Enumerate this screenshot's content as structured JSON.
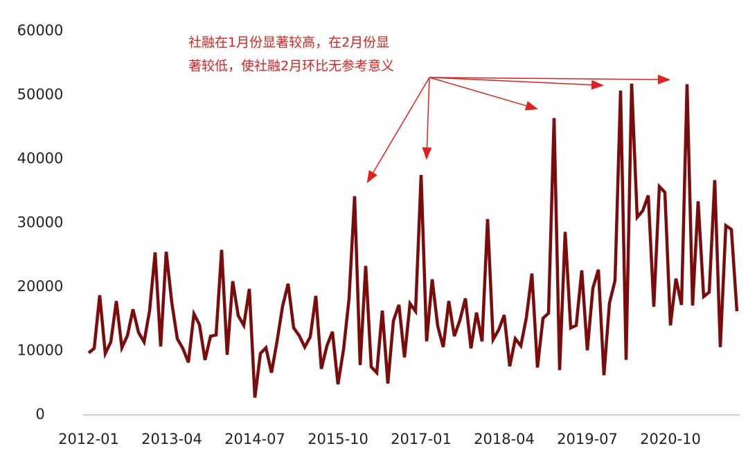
{
  "chart_data": {
    "type": "line",
    "annotation": [
      "社融在1月份显著较高，在2月份显",
      "著较低，使社融2月环比无参考意义"
    ],
    "categories": [
      "2012-01",
      null,
      null,
      null,
      null,
      null,
      null,
      null,
      null,
      null,
      null,
      null,
      null,
      null,
      null,
      "2013-04",
      null,
      null,
      null,
      null,
      null,
      null,
      null,
      null,
      null,
      null,
      null,
      null,
      null,
      null,
      "2014-07",
      null,
      null,
      null,
      null,
      null,
      null,
      null,
      null,
      null,
      null,
      null,
      null,
      null,
      null,
      "2015-10",
      null,
      null,
      null,
      null,
      null,
      null,
      null,
      null,
      null,
      null,
      null,
      null,
      null,
      null,
      "2017-01",
      null,
      null,
      null,
      null,
      null,
      null,
      null,
      null,
      null,
      null,
      null,
      null,
      null,
      null,
      "2018-04",
      null,
      null,
      null,
      null,
      null,
      null,
      null,
      null,
      null,
      null,
      null,
      null,
      null,
      null,
      "2019-07",
      null,
      null,
      null,
      null,
      null,
      null,
      null,
      null,
      null,
      null,
      null,
      null,
      null,
      null,
      "2020-10",
      null,
      null,
      null,
      null,
      null,
      null,
      null,
      null,
      null,
      null,
      null,
      null
    ],
    "series": [
      {
        "color": "#7a0c0c",
        "values": [
          9700,
          10400,
          18700,
          9600,
          11400,
          17800,
          10500,
          12400,
          16500,
          12900,
          11400,
          16300,
          25400,
          10700,
          25500,
          17600,
          11900,
          10400,
          8200,
          15800,
          14100,
          8600,
          12300,
          12500,
          25800,
          9400,
          20900,
          15500,
          14000,
          19700,
          2700,
          9600,
          10500,
          6600,
          11500,
          17000,
          20500,
          13600,
          12400,
          10600,
          12200,
          18600,
          7200,
          10800,
          13000,
          4800,
          10200,
          18200,
          34200,
          7800,
          23300,
          7500,
          6600,
          16300,
          4900,
          14700,
          17200,
          9000,
          17400,
          16200,
          37500,
          11500,
          21200,
          13900,
          10600,
          17800,
          12300,
          14800,
          18200,
          10400,
          16000,
          11500,
          30600,
          11800,
          13300,
          15600,
          7600,
          11900,
          10800,
          15200,
          22100,
          7400,
          15100,
          15900,
          46400,
          7000,
          28600,
          13600,
          14000,
          22600,
          10100,
          19800,
          22700,
          6200,
          17500,
          21000,
          50700,
          8600,
          51800,
          30900,
          31900,
          34300,
          16900,
          35700,
          34800,
          14000,
          21300,
          17200,
          51700,
          17100,
          33400,
          18500,
          19200,
          36700,
          10600,
          29600,
          29000,
          16200
        ]
      }
    ],
    "ylim": [
      0,
      60000
    ],
    "yticks": [
      0,
      10000,
      20000,
      30000,
      40000,
      50000,
      60000
    ],
    "grid": false
  }
}
